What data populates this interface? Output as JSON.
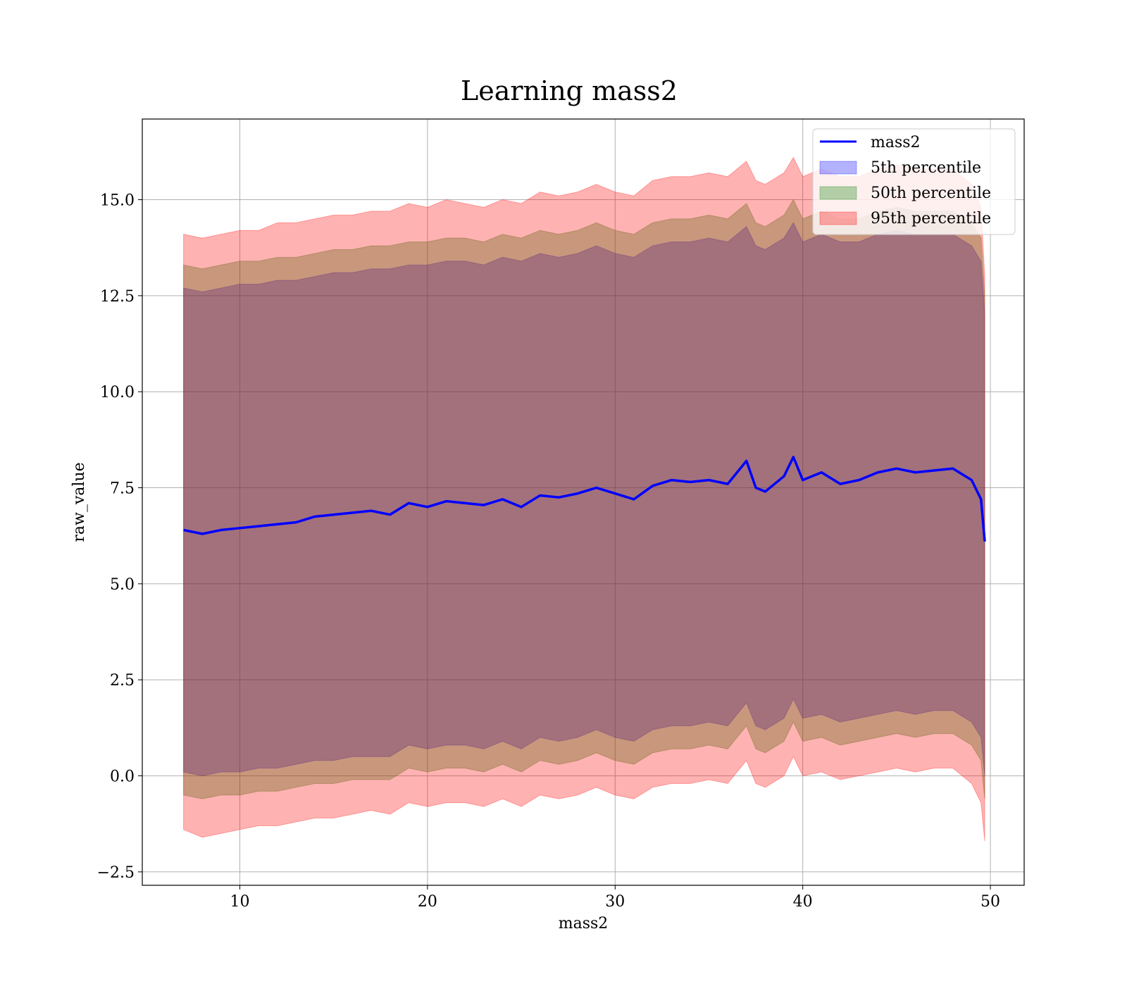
{
  "chart_data": {
    "type": "line",
    "title": "Learning mass2",
    "xlabel": "mass2",
    "ylabel": "raw_value",
    "xlim": [
      4.8,
      51.8
    ],
    "ylim": [
      -2.85,
      17.1
    ],
    "x_ticks": [
      10,
      20,
      30,
      40,
      50
    ],
    "x_tick_labels": [
      "10",
      "20",
      "30",
      "40",
      "50"
    ],
    "y_ticks": [
      -2.5,
      0.0,
      2.5,
      5.0,
      7.5,
      10.0,
      12.5,
      15.0
    ],
    "y_tick_labels": [
      "−2.5",
      "0.0",
      "2.5",
      "5.0",
      "7.5",
      "10.0",
      "12.5",
      "15.0"
    ],
    "grid": true,
    "legend_position": "top-right",
    "legend": [
      {
        "label": "mass2",
        "kind": "line",
        "color": "#0000ff"
      },
      {
        "label": "5th percentile",
        "kind": "band",
        "color": "#0000ff"
      },
      {
        "label": "50th percentile",
        "kind": "band",
        "color": "#008000"
      },
      {
        "label": "95th percentile",
        "kind": "band",
        "color": "#ff0000"
      }
    ],
    "x": [
      7.0,
      8.0,
      9.0,
      10.0,
      11.0,
      12.0,
      13.0,
      14.0,
      15.0,
      16.0,
      17.0,
      18.0,
      19.0,
      20.0,
      21.0,
      22.0,
      23.0,
      24.0,
      25.0,
      26.0,
      27.0,
      28.0,
      29.0,
      30.0,
      31.0,
      32.0,
      33.0,
      34.0,
      35.0,
      36.0,
      37.0,
      37.5,
      38.0,
      39.0,
      39.5,
      40.0,
      41.0,
      42.0,
      43.0,
      44.0,
      45.0,
      46.0,
      47.0,
      48.0,
      49.0,
      49.5,
      49.7
    ],
    "series": [
      {
        "name": "mass2",
        "color": "#0000ff",
        "values": [
          6.4,
          6.3,
          6.4,
          6.45,
          6.5,
          6.55,
          6.6,
          6.75,
          6.8,
          6.85,
          6.9,
          6.8,
          7.1,
          7.0,
          7.15,
          7.1,
          7.05,
          7.2,
          7.0,
          7.3,
          7.25,
          7.35,
          7.5,
          7.35,
          7.2,
          7.55,
          7.7,
          7.65,
          7.7,
          7.6,
          8.2,
          7.5,
          7.4,
          7.8,
          8.3,
          7.7,
          7.9,
          7.6,
          7.7,
          7.9,
          8.0,
          7.9,
          7.95,
          8.0,
          7.7,
          7.2,
          6.1
        ]
      },
      {
        "name": "5th percentile",
        "color": "#0000ff",
        "upper": [
          12.7,
          12.6,
          12.7,
          12.8,
          12.8,
          12.9,
          12.9,
          13.0,
          13.1,
          13.1,
          13.2,
          13.2,
          13.3,
          13.3,
          13.4,
          13.4,
          13.3,
          13.5,
          13.4,
          13.6,
          13.5,
          13.6,
          13.8,
          13.6,
          13.5,
          13.8,
          13.9,
          13.9,
          14.0,
          13.9,
          14.3,
          13.8,
          13.7,
          14.0,
          14.4,
          13.9,
          14.1,
          13.9,
          13.9,
          14.1,
          14.2,
          14.1,
          14.1,
          14.1,
          13.8,
          13.4,
          12.0
        ],
        "lower": [
          0.1,
          0.0,
          0.1,
          0.1,
          0.2,
          0.2,
          0.3,
          0.4,
          0.4,
          0.5,
          0.5,
          0.5,
          0.8,
          0.7,
          0.8,
          0.8,
          0.7,
          0.9,
          0.7,
          1.0,
          0.9,
          1.0,
          1.2,
          1.0,
          0.9,
          1.2,
          1.3,
          1.3,
          1.4,
          1.3,
          1.9,
          1.3,
          1.2,
          1.5,
          2.0,
          1.5,
          1.6,
          1.4,
          1.5,
          1.6,
          1.7,
          1.6,
          1.7,
          1.7,
          1.4,
          1.0,
          0.0
        ]
      },
      {
        "name": "50th percentile",
        "color": "#008000",
        "upper": [
          13.3,
          13.2,
          13.3,
          13.4,
          13.4,
          13.5,
          13.5,
          13.6,
          13.7,
          13.7,
          13.8,
          13.8,
          13.9,
          13.9,
          14.0,
          14.0,
          13.9,
          14.1,
          14.0,
          14.2,
          14.1,
          14.2,
          14.4,
          14.2,
          14.1,
          14.4,
          14.5,
          14.5,
          14.6,
          14.5,
          14.9,
          14.4,
          14.3,
          14.6,
          15.0,
          14.5,
          14.7,
          14.5,
          14.5,
          14.7,
          14.8,
          14.7,
          14.7,
          14.7,
          14.4,
          14.0,
          12.5
        ],
        "lower": [
          -0.5,
          -0.6,
          -0.5,
          -0.5,
          -0.4,
          -0.4,
          -0.3,
          -0.2,
          -0.2,
          -0.1,
          -0.1,
          -0.1,
          0.2,
          0.1,
          0.2,
          0.2,
          0.1,
          0.3,
          0.1,
          0.4,
          0.3,
          0.4,
          0.6,
          0.4,
          0.3,
          0.6,
          0.7,
          0.7,
          0.8,
          0.7,
          1.3,
          0.7,
          0.6,
          0.9,
          1.4,
          0.9,
          1.0,
          0.8,
          0.9,
          1.0,
          1.1,
          1.0,
          1.1,
          1.1,
          0.8,
          0.4,
          -0.6
        ]
      },
      {
        "name": "95th percentile",
        "color": "#ff0000",
        "upper": [
          14.1,
          14.0,
          14.1,
          14.2,
          14.2,
          14.4,
          14.4,
          14.5,
          14.6,
          14.6,
          14.7,
          14.7,
          14.9,
          14.8,
          15.0,
          14.9,
          14.8,
          15.0,
          14.9,
          15.2,
          15.1,
          15.2,
          15.4,
          15.2,
          15.1,
          15.5,
          15.6,
          15.6,
          15.7,
          15.6,
          16.0,
          15.5,
          15.4,
          15.7,
          16.1,
          15.6,
          15.8,
          15.6,
          15.6,
          15.8,
          15.9,
          15.8,
          15.8,
          15.8,
          15.4,
          14.8,
          13.0
        ],
        "lower": [
          -1.4,
          -1.6,
          -1.5,
          -1.4,
          -1.3,
          -1.3,
          -1.2,
          -1.1,
          -1.1,
          -1.0,
          -0.9,
          -1.0,
          -0.7,
          -0.8,
          -0.7,
          -0.7,
          -0.8,
          -0.6,
          -0.8,
          -0.5,
          -0.6,
          -0.5,
          -0.3,
          -0.5,
          -0.6,
          -0.3,
          -0.2,
          -0.2,
          -0.1,
          -0.2,
          0.4,
          -0.2,
          -0.3,
          0.0,
          0.5,
          0.0,
          0.1,
          -0.1,
          0.0,
          0.1,
          0.2,
          0.1,
          0.2,
          0.2,
          -0.2,
          -0.7,
          -1.7
        ]
      }
    ]
  }
}
